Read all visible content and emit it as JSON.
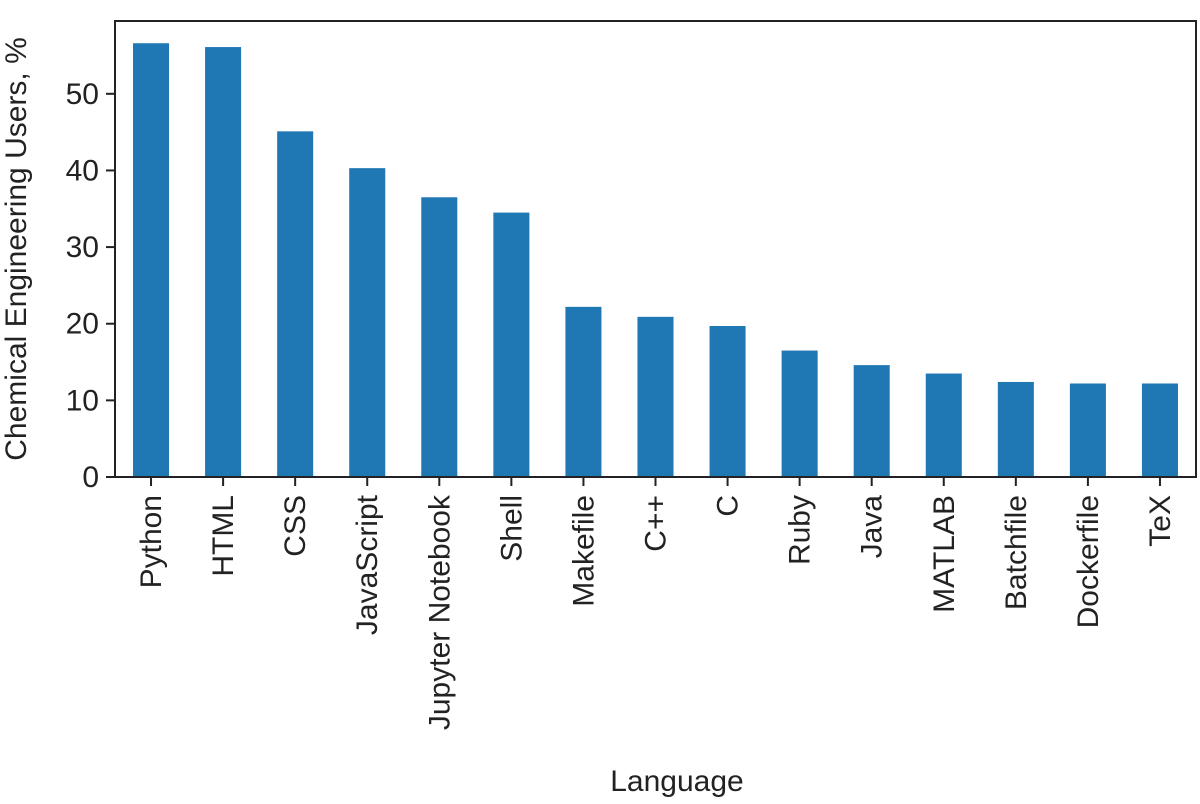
{
  "chart_data": {
    "type": "bar",
    "title": "",
    "xlabel": "Language",
    "ylabel": "Chemical Engineering Users, %",
    "categories": [
      "Python",
      "HTML",
      "CSS",
      "JavaScript",
      "Jupyter Notebook",
      "Shell",
      "Makefile",
      "C++",
      "C",
      "Ruby",
      "Java",
      "MATLAB",
      "Batchfile",
      "Dockerfile",
      "TeX"
    ],
    "values": [
      56.6,
      56.1,
      45.1,
      40.3,
      36.5,
      34.5,
      22.2,
      20.9,
      19.7,
      16.5,
      14.6,
      13.5,
      12.4,
      12.2,
      12.2
    ],
    "ylim": [
      0,
      59.5
    ],
    "yticks": [
      0,
      10,
      20,
      30,
      40,
      50
    ],
    "bar_color": "#1f77b4",
    "grid": false,
    "legend": "none"
  }
}
